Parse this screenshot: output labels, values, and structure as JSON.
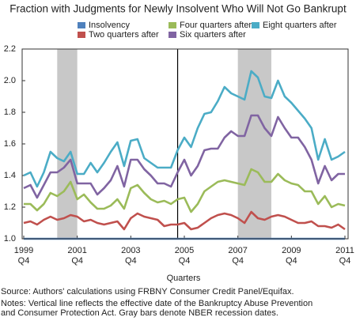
{
  "chart_data": {
    "type": "line",
    "title": "Fraction with Judgments for Newly Insolvent Who Will Not Go Bankrupt",
    "xlabel": "Quarters",
    "source": "Source: Authors' calculations using FRBNY Consumer Credit Panel/Equifax.",
    "notes": [
      "Notes: Vertical line reflects the effective date of the Bankruptcy Abuse Prevention",
      "and Consumer Protection Act. Gray bars denote NBER recession dates."
    ],
    "categories": [
      {
        "year": "1999",
        "quarter": "Q4"
      },
      null,
      null,
      null,
      null,
      null,
      null,
      null,
      {
        "year": "2001",
        "quarter": "Q4"
      },
      null,
      null,
      null,
      null,
      null,
      null,
      null,
      {
        "year": "2003",
        "quarter": "Q4"
      },
      null,
      null,
      null,
      null,
      null,
      null,
      null,
      {
        "year": "2005",
        "quarter": "Q4"
      },
      null,
      null,
      null,
      null,
      null,
      null,
      null,
      {
        "year": "2007",
        "quarter": "Q4"
      },
      null,
      null,
      null,
      null,
      null,
      null,
      null,
      {
        "year": "2009",
        "quarter": "Q4"
      },
      null,
      null,
      null,
      null,
      null,
      null,
      null,
      {
        "year": "2011",
        "quarter": "Q4"
      }
    ],
    "ylim": [
      1.0,
      2.2
    ],
    "yticks": [
      {
        "value": 1.0,
        "label": "1.0"
      },
      1.2,
      1.4,
      1.6,
      1.8,
      {
        "value": 2.0,
        "label": "2.0"
      },
      2.2
    ],
    "recessions": [
      [
        5,
        8
      ],
      [
        32,
        37
      ]
    ],
    "recession_color": "#c8c8c8",
    "vline_at": 23,
    "series": [
      {
        "name": "Insolvency",
        "color": "#4f81bd",
        "values": [
          1,
          1,
          1,
          1,
          1,
          1,
          1,
          1,
          1,
          1,
          1,
          1,
          1,
          1,
          1,
          1,
          1,
          1,
          1,
          1,
          1,
          1,
          1,
          1,
          1,
          1,
          1,
          1,
          1,
          1,
          1,
          1,
          1,
          1,
          1,
          1,
          1,
          1,
          1,
          1,
          1,
          1,
          1,
          1,
          1,
          1,
          1,
          1,
          1
        ]
      },
      {
        "name": "Two quarters after",
        "color": "#c0504d",
        "values": [
          1.1,
          1.11,
          1.09,
          1.12,
          1.14,
          1.12,
          1.13,
          1.15,
          1.14,
          1.11,
          1.12,
          1.1,
          1.09,
          1.1,
          1.11,
          1.06,
          1.13,
          1.16,
          1.14,
          1.13,
          1.12,
          1.08,
          1.09,
          1.09,
          1.1,
          1.06,
          1.07,
          1.1,
          1.13,
          1.15,
          1.16,
          1.15,
          1.13,
          1.1,
          1.17,
          1.13,
          1.12,
          1.14,
          1.15,
          1.14,
          1.12,
          1.1,
          1.1,
          1.11,
          1.08,
          1.08,
          1.07,
          1.09,
          1.06
        ]
      },
      {
        "name": "Four quarters after",
        "color": "#9bbb59",
        "values": [
          1.22,
          1.22,
          1.18,
          1.22,
          1.29,
          1.27,
          1.3,
          1.36,
          1.25,
          1.28,
          1.23,
          1.19,
          1.19,
          1.21,
          1.25,
          1.19,
          1.32,
          1.34,
          1.29,
          1.25,
          1.23,
          1.24,
          1.22,
          1.25,
          1.26,
          1.17,
          1.22,
          1.3,
          1.33,
          1.36,
          1.37,
          1.36,
          1.35,
          1.34,
          1.44,
          1.42,
          1.36,
          1.36,
          1.41,
          1.37,
          1.35,
          1.34,
          1.3,
          1.3,
          1.22,
          1.27,
          1.2,
          1.22,
          1.21
        ]
      },
      {
        "name": "Six quarters after",
        "color": "#8064a2",
        "values": [
          1.32,
          1.34,
          1.26,
          1.34,
          1.42,
          1.42,
          1.45,
          1.5,
          1.35,
          1.35,
          1.35,
          1.28,
          1.32,
          1.37,
          1.46,
          1.33,
          1.5,
          1.5,
          1.44,
          1.4,
          1.35,
          1.35,
          1.33,
          1.42,
          1.5,
          1.4,
          1.46,
          1.56,
          1.57,
          1.57,
          1.64,
          1.68,
          1.65,
          1.65,
          1.78,
          1.78,
          1.7,
          1.65,
          1.77,
          1.7,
          1.64,
          1.64,
          1.58,
          1.5,
          1.35,
          1.46,
          1.37,
          1.41,
          1.41
        ]
      },
      {
        "name": "Eight quarters after",
        "color": "#4bacc6",
        "values": [
          1.4,
          1.42,
          1.33,
          1.42,
          1.55,
          1.51,
          1.49,
          1.55,
          1.41,
          1.41,
          1.48,
          1.42,
          1.48,
          1.55,
          1.61,
          1.46,
          1.62,
          1.63,
          1.51,
          1.48,
          1.45,
          1.45,
          1.45,
          1.56,
          1.64,
          1.58,
          1.7,
          1.79,
          1.8,
          1.87,
          1.96,
          1.92,
          1.9,
          1.88,
          2.06,
          2.02,
          1.9,
          1.89,
          2.0,
          1.9,
          1.86,
          1.81,
          1.76,
          1.7,
          1.5,
          1.63,
          1.5,
          1.52,
          1.55
        ]
      }
    ]
  }
}
